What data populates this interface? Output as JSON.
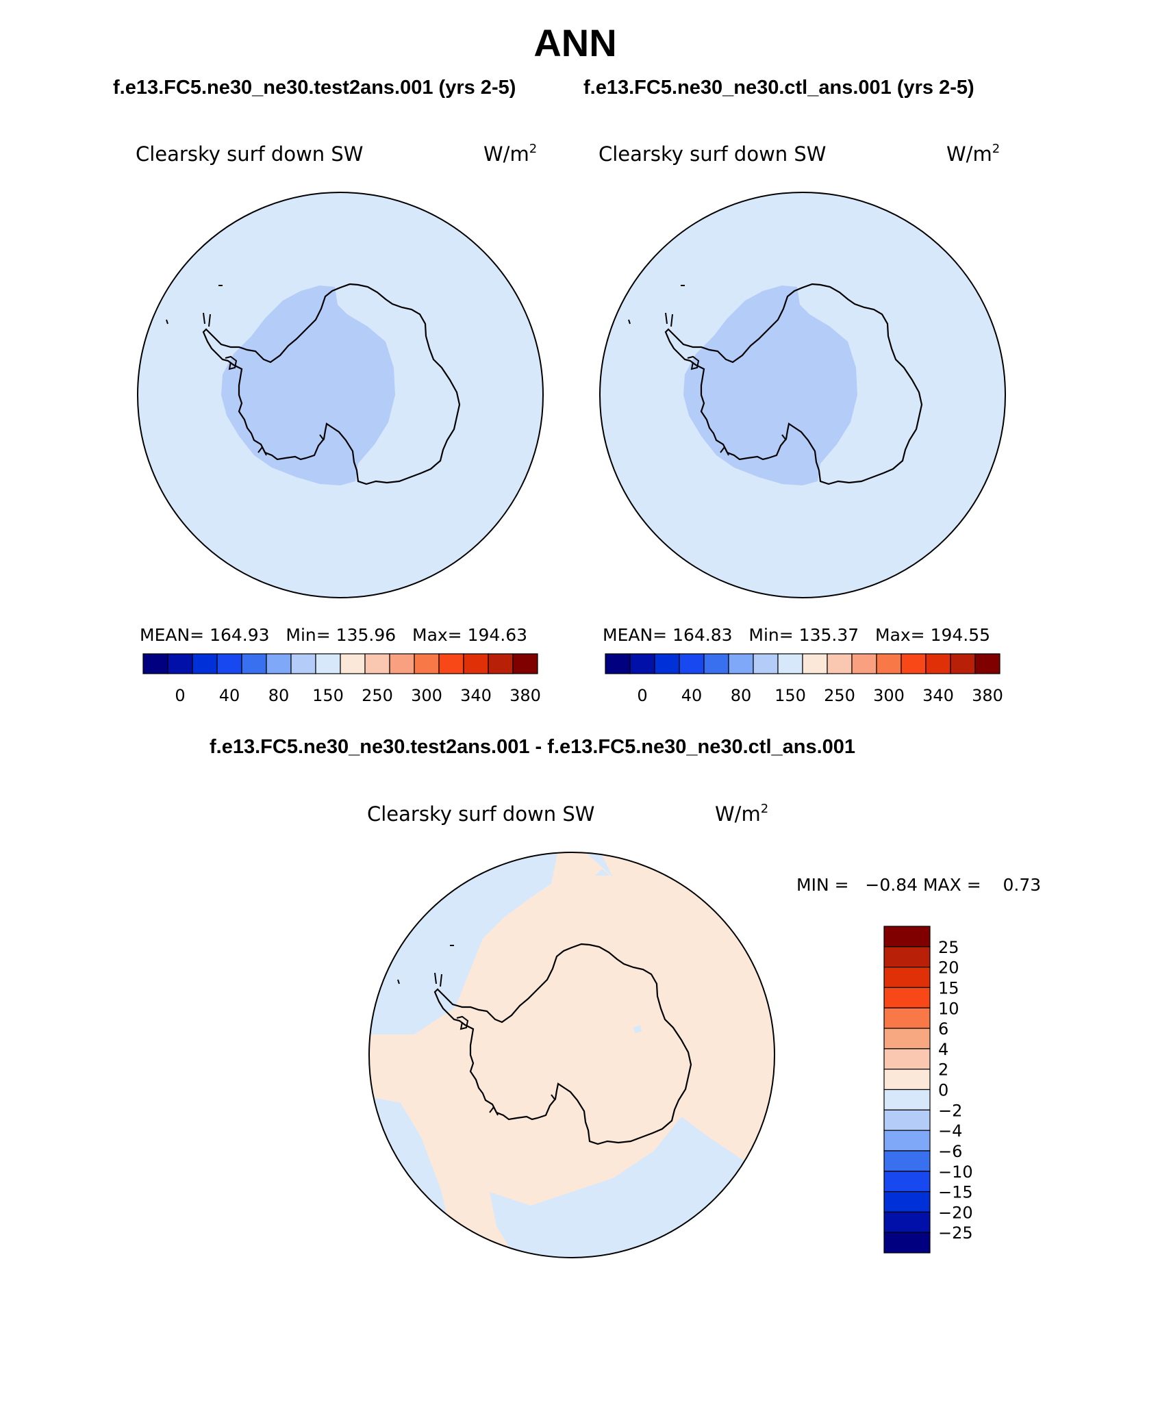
{
  "title": "ANN",
  "case_titles": {
    "test": "f.e13.FC5.ne30_ne30.test2ans.001 (yrs 2-5)",
    "ctl": "f.e13.FC5.ne30_ne30.ctl_ans.001 (yrs 2-5)",
    "diff": "f.e13.FC5.ne30_ne30.test2ans.001 - f.e13.FC5.ne30_ne30.ctl_ans.001"
  },
  "panels": {
    "test": {
      "variable": "Clearsky surf down SW",
      "units": "W/m",
      "units_exp": "2",
      "stats": {
        "mean_label": "MEAN=",
        "mean": "164.93",
        "min_label": "Min=",
        "min": "135.96",
        "max_label": "Max=",
        "max": "194.63"
      }
    },
    "ctl": {
      "variable": "Clearsky surf down SW",
      "units": "W/m",
      "units_exp": "2",
      "stats": {
        "mean_label": "MEAN=",
        "mean": "164.83",
        "min_label": "Min=",
        "min": "135.37",
        "max_label": "Max=",
        "max": "194.55"
      }
    },
    "diff": {
      "variable": "Clearsky surf down SW",
      "units": "W/m",
      "units_exp": "2",
      "stats": {
        "min_label": "MIN =",
        "min": "−0.84",
        "max_label": "MAX =",
        "max": "0.73"
      }
    }
  },
  "chart_data": [
    {
      "type": "map-polar-contour",
      "panel": "test",
      "title": "Clearsky surf down SW",
      "units": "W/m^2",
      "colorbar": {
        "orientation": "horizontal",
        "tick_labels": [
          "0",
          "40",
          "80",
          "150",
          "250",
          "300",
          "340",
          "380"
        ],
        "colors": [
          "#000080",
          "#0010A8",
          "#0030D8",
          "#1848F0",
          "#3870F0",
          "#80A8F8",
          "#B4CCF8",
          "#D8E8FB",
          "#FCE8D8",
          "#FAC8B0",
          "#F8A080",
          "#F87848",
          "#F84818",
          "#E03008",
          "#B82008",
          "#800000"
        ]
      },
      "regions": [
        {
          "label": "ocean / East Antarctica",
          "color": "#D8E8FB",
          "range": "150-250"
        },
        {
          "label": "West Antarctica",
          "color": "#B4CCF8",
          "range": "80-150"
        }
      ]
    },
    {
      "type": "map-polar-contour",
      "panel": "ctl",
      "title": "Clearsky surf down SW",
      "units": "W/m^2",
      "colorbar": {
        "orientation": "horizontal",
        "tick_labels": [
          "0",
          "40",
          "80",
          "150",
          "250",
          "300",
          "340",
          "380"
        ],
        "colors": [
          "#000080",
          "#0010A8",
          "#0030D8",
          "#1848F0",
          "#3870F0",
          "#80A8F8",
          "#B4CCF8",
          "#D8E8FB",
          "#FCE8D8",
          "#FAC8B0",
          "#F8A080",
          "#F87848",
          "#F84818",
          "#E03008",
          "#B82008",
          "#800000"
        ]
      },
      "regions": [
        {
          "label": "ocean / East Antarctica",
          "color": "#D8E8FB",
          "range": "150-250"
        },
        {
          "label": "West Antarctica",
          "color": "#B4CCF8",
          "range": "80-150"
        }
      ]
    },
    {
      "type": "map-polar-contour",
      "panel": "diff",
      "title": "Clearsky surf down SW",
      "units": "W/m^2",
      "colorbar": {
        "orientation": "vertical",
        "tick_labels": [
          "25",
          "20",
          "15",
          "10",
          "6",
          "4",
          "2",
          "0",
          "−2",
          "−4",
          "−6",
          "−10",
          "−15",
          "−20",
          "−25"
        ],
        "colors": [
          "#800000",
          "#B82008",
          "#E03008",
          "#F84818",
          "#F87848",
          "#F8A880",
          "#FAC8B0",
          "#FCE8D8",
          "#D8E8FB",
          "#B4CCF8",
          "#80A8F8",
          "#3870F0",
          "#1848F0",
          "#0030D8",
          "#0010A8",
          "#000080"
        ]
      },
      "regions": [
        {
          "label": "positive",
          "color": "#FCE8D8",
          "range": "0-2"
        },
        {
          "label": "negative",
          "color": "#D8E8FB",
          "range": "-2-0"
        }
      ]
    }
  ]
}
